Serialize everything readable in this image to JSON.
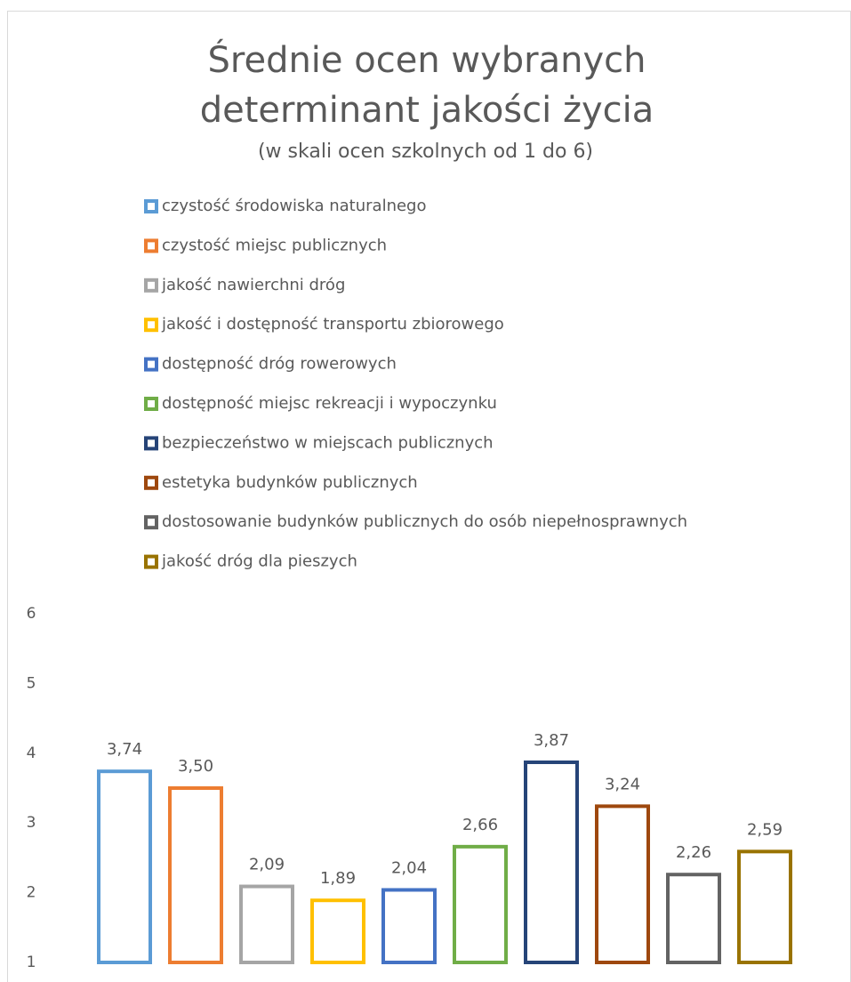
{
  "chart_data": {
    "type": "bar",
    "title": "Średnie ocen wybranych determinant jakości życia",
    "subtitle": "(w skali ocen szkolnych od 1 do 6)",
    "series": [
      {
        "name": "czystość środowiska naturalnego",
        "color": "#5b9bd5",
        "values": [
          3.74
        ],
        "value_labels": [
          "3,74"
        ]
      },
      {
        "name": "czystość miejsc publicznych",
        "color": "#ed7d31",
        "values": [
          3.5
        ],
        "value_labels": [
          "3,50"
        ]
      },
      {
        "name": "jakość nawierchni dróg",
        "color": "#a5a5a5",
        "values": [
          2.09
        ],
        "value_labels": [
          "2,09"
        ]
      },
      {
        "name": "jakość i dostępność transportu zbiorowego",
        "color": "#ffc000",
        "values": [
          1.89
        ],
        "value_labels": [
          "1,89"
        ]
      },
      {
        "name": "dostępność dróg rowerowych",
        "color": "#4472c4",
        "values": [
          2.04
        ],
        "value_labels": [
          "2,04"
        ]
      },
      {
        "name": "dostępność miejsc rekreacji i wypoczynku",
        "color": "#70ad47",
        "values": [
          2.66
        ],
        "value_labels": [
          "2,66"
        ]
      },
      {
        "name": "bezpieczeństwo w miejscach publicznych",
        "color": "#264478",
        "values": [
          3.87
        ],
        "value_labels": [
          "3,87"
        ]
      },
      {
        "name": "estetyka budynków publicznych",
        "color": "#9e480e",
        "values": [
          3.24
        ],
        "value_labels": [
          "3,24"
        ]
      },
      {
        "name": "dostosowanie budynków publicznych do osób niepełnosprawnych",
        "color": "#636363",
        "values": [
          2.26
        ],
        "value_labels": [
          "2,26"
        ]
      },
      {
        "name": "jakość dróg dla pieszych",
        "color": "#997300",
        "values": [
          2.59
        ],
        "value_labels": [
          "2,59"
        ]
      }
    ],
    "ylim": [
      1,
      6
    ],
    "yticks": [
      1,
      2,
      3,
      4,
      5,
      6
    ],
    "grid": false,
    "legend": "top"
  }
}
